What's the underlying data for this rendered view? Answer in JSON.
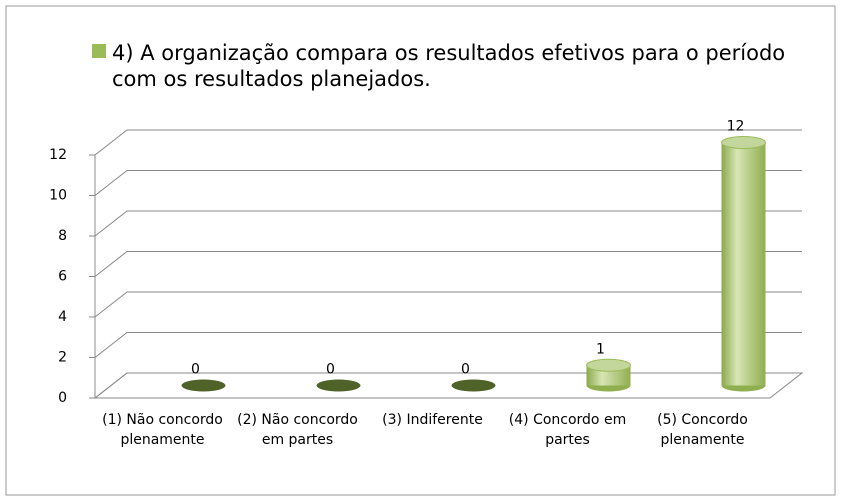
{
  "chart_data": {
    "type": "bar",
    "series": [
      {
        "name": "4) A organização compara os resultados efetivos para o período com os resultados planejados.",
        "color": "#9bbb59",
        "values": [
          0,
          0,
          0,
          1,
          12
        ]
      }
    ],
    "categories": [
      "(1) Não concordo plenamente",
      "(2) Não concordo em partes",
      "(3) Indiferente",
      "(4) Concordo em partes",
      "(5) Concordo plenamente"
    ],
    "ylim": [
      0,
      12
    ],
    "yticks": [
      0,
      2,
      4,
      6,
      8,
      10,
      12
    ],
    "grid": true,
    "legend": "top"
  }
}
